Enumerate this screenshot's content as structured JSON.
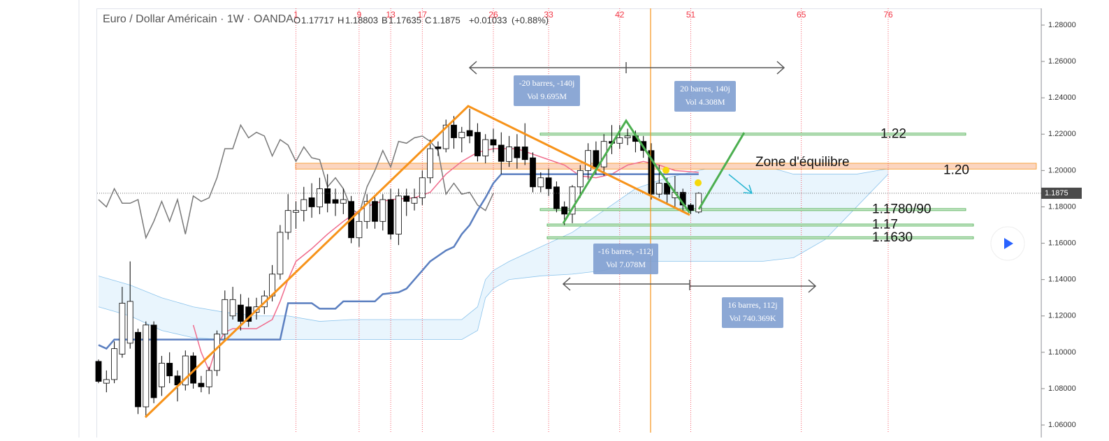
{
  "chart_data": {
    "type": "candlestick",
    "title": "Euro / Dollar Américain · 1W · OANDA",
    "ohlc_labels": [
      "O",
      "H",
      "B",
      "C"
    ],
    "change": "+0.01033",
    "change_pct": "(+0.88%)",
    "open": [
      1.095,
      1.083,
      1.085,
      1.099,
      1.105,
      1.111,
      1.07,
      1.115,
      1.081,
      1.094,
      1.087,
      1.082,
      1.098,
      1.083,
      1.081,
      1.09,
      1.11,
      1.12,
      1.126,
      1.125,
      1.122,
      1.125,
      1.131,
      1.143,
      1.166,
      1.177,
      1.178,
      1.185,
      1.18,
      1.19,
      1.184,
      1.182,
      1.183,
      1.163,
      1.172,
      1.183,
      1.172,
      1.184,
      1.165,
      1.186,
      1.182,
      1.185,
      1.196,
      1.213,
      1.212,
      1.225,
      1.218,
      1.222,
      1.221,
      1.208,
      1.217,
      1.214,
      1.205,
      1.213,
      1.213,
      1.207,
      1.191,
      1.196,
      1.191,
      1.18,
      1.176,
      1.191,
      1.2,
      1.211,
      1.202,
      1.216,
      1.215,
      1.218,
      1.219,
      1.216,
      1.211,
      1.187,
      1.193,
      1.185,
      1.188,
      1.181,
      1.17717
    ],
    "high": [
      1.096,
      1.09,
      1.106,
      1.136,
      1.15,
      1.113,
      1.117,
      1.117,
      1.098,
      1.1,
      1.09,
      1.101,
      1.1,
      1.087,
      1.092,
      1.112,
      1.134,
      1.136,
      1.132,
      1.13,
      1.13,
      1.134,
      1.148,
      1.17,
      1.187,
      1.183,
      1.191,
      1.193,
      1.196,
      1.198,
      1.19,
      1.19,
      1.186,
      1.176,
      1.187,
      1.186,
      1.187,
      1.19,
      1.19,
      1.19,
      1.19,
      1.2,
      1.217,
      1.216,
      1.228,
      1.23,
      1.224,
      1.234,
      1.226,
      1.22,
      1.223,
      1.221,
      1.219,
      1.22,
      1.226,
      1.21,
      1.199,
      1.201,
      1.194,
      1.183,
      1.192,
      1.203,
      1.215,
      1.216,
      1.22,
      1.225,
      1.225,
      1.223,
      1.222,
      1.219,
      1.215,
      1.203,
      1.196,
      1.197,
      1.19,
      1.182,
      1.18803
    ],
    "low": [
      1.083,
      1.078,
      1.083,
      1.097,
      1.102,
      1.066,
      1.064,
      1.072,
      1.076,
      1.083,
      1.073,
      1.079,
      1.08,
      1.078,
      1.077,
      1.087,
      1.107,
      1.118,
      1.112,
      1.114,
      1.118,
      1.121,
      1.128,
      1.14,
      1.162,
      1.168,
      1.172,
      1.174,
      1.176,
      1.177,
      1.175,
      1.176,
      1.16,
      1.158,
      1.168,
      1.168,
      1.167,
      1.162,
      1.159,
      1.175,
      1.178,
      1.181,
      1.193,
      1.208,
      1.21,
      1.212,
      1.21,
      1.215,
      1.205,
      1.204,
      1.21,
      1.198,
      1.202,
      1.201,
      1.203,
      1.188,
      1.188,
      1.186,
      1.177,
      1.17,
      1.171,
      1.185,
      1.195,
      1.198,
      1.197,
      1.209,
      1.212,
      1.214,
      1.21,
      1.207,
      1.184,
      1.185,
      1.182,
      1.18,
      1.178,
      1.176,
      1.17635
    ],
    "close": [
      1.084,
      1.085,
      1.102,
      1.127,
      1.128,
      1.07,
      1.115,
      1.075,
      1.094,
      1.087,
      1.082,
      1.098,
      1.083,
      1.081,
      1.09,
      1.11,
      1.129,
      1.129,
      1.117,
      1.117,
      1.125,
      1.131,
      1.143,
      1.166,
      1.178,
      1.178,
      1.184,
      1.18,
      1.19,
      1.182,
      1.182,
      1.184,
      1.163,
      1.172,
      1.183,
      1.172,
      1.184,
      1.165,
      1.186,
      1.183,
      1.185,
      1.196,
      1.212,
      1.212,
      1.225,
      1.218,
      1.221,
      1.219,
      1.208,
      1.217,
      1.214,
      1.205,
      1.213,
      1.207,
      1.206,
      1.191,
      1.196,
      1.19,
      1.179,
      1.176,
      1.191,
      1.2,
      1.211,
      1.202,
      1.216,
      1.215,
      1.218,
      1.219,
      1.216,
      1.211,
      1.187,
      1.193,
      1.187,
      1.188,
      1.181,
      1.178,
      1.1875
    ],
    "ylim": [
      1.0558,
      1.2892
    ],
    "yticks": [
      {
        "value": 1.28,
        "label": "1.28000"
      },
      {
        "value": 1.26,
        "label": "1.26000"
      },
      {
        "value": 1.24,
        "label": "1.24000"
      },
      {
        "value": 1.22,
        "label": "1.22000"
      },
      {
        "value": 1.2,
        "label": "1.20000"
      },
      {
        "value": 1.18,
        "label": "1.18000"
      },
      {
        "value": 1.16,
        "label": "1.16000"
      },
      {
        "value": 1.14,
        "label": "1.14000"
      },
      {
        "value": 1.12,
        "label": "1.12000"
      },
      {
        "value": 1.1,
        "label": "1.10000"
      },
      {
        "value": 1.08,
        "label": "1.08000"
      },
      {
        "value": 1.06,
        "label": "1.06000"
      }
    ],
    "time_zones": [
      1,
      9,
      13,
      17,
      26,
      33,
      42,
      51,
      65,
      76
    ],
    "zone": {
      "label": "Zone d'équilibre",
      "low": 1.2008,
      "high": 1.204
    },
    "levels": [
      {
        "value": 1.22,
        "label": "1.22"
      },
      {
        "value": 1.2,
        "label": "1.20"
      },
      {
        "value": 1.1785,
        "label": "1.1780/90"
      },
      {
        "value": 1.17,
        "label": "1.17"
      },
      {
        "value": 1.163,
        "label": "1.1630"
      }
    ],
    "overlays": [
      {
        "color": "#787878",
        "x": [
          0,
          1,
          2,
          3,
          4,
          5,
          6,
          7,
          8,
          9,
          10,
          11,
          12,
          13,
          14,
          15,
          16,
          17,
          18,
          19,
          20,
          21,
          22,
          23,
          24,
          25,
          26,
          27,
          28,
          29,
          30,
          31,
          32,
          33,
          34,
          35,
          36,
          37,
          38,
          39,
          40,
          41,
          42,
          43,
          44,
          45,
          46,
          47,
          48,
          49,
          50
        ],
        "values": [
          1.184,
          1.18,
          1.19,
          1.182,
          1.182,
          1.184,
          1.163,
          1.172,
          1.183,
          1.172,
          1.184,
          1.165,
          1.186,
          1.183,
          1.185,
          1.196,
          1.212,
          1.212,
          1.225,
          1.218,
          1.221,
          1.219,
          1.208,
          1.217,
          1.214,
          1.205,
          1.213,
          1.207,
          1.206,
          1.191,
          1.196,
          1.19,
          1.179,
          1.176,
          1.191,
          1.2,
          1.211,
          1.202,
          1.216,
          1.215,
          1.218,
          1.219,
          1.216,
          1.211,
          1.187,
          1.193,
          1.187,
          1.188,
          1.181,
          1.178,
          1.1875
        ]
      },
      {
        "color": "#f06b8c",
        "x": [
          12,
          13,
          14,
          15,
          16,
          17,
          20,
          22,
          23,
          24,
          25,
          27,
          29,
          31,
          33,
          35,
          37,
          40,
          42,
          44,
          46,
          48,
          50,
          53,
          55,
          57,
          59,
          61,
          63,
          65,
          67,
          69,
          71,
          73,
          76
        ],
        "values": [
          1.115,
          1.1,
          1.09,
          1.104,
          1.111,
          1.113,
          1.113,
          1.118,
          1.128,
          1.14,
          1.15,
          1.157,
          1.165,
          1.172,
          1.178,
          1.182,
          1.184,
          1.185,
          1.188,
          1.198,
          1.205,
          1.21,
          1.212,
          1.212,
          1.209,
          1.206,
          1.203,
          1.197,
          1.196,
          1.198,
          1.203,
          1.205,
          1.203,
          1.2,
          1.199
        ]
      },
      {
        "color": "#5b7fc0",
        "x": [
          0,
          1,
          2,
          23,
          24,
          27,
          28,
          30,
          31,
          35,
          36,
          38,
          39,
          40,
          41,
          42,
          44,
          45,
          46,
          47,
          48,
          49,
          50,
          51,
          76
        ],
        "values": [
          1.104,
          1.102,
          1.107,
          1.107,
          1.127,
          1.127,
          1.124,
          1.124,
          1.128,
          1.128,
          1.132,
          1.133,
          1.135,
          1.14,
          1.145,
          1.15,
          1.156,
          1.158,
          1.165,
          1.17,
          1.178,
          1.185,
          1.193,
          1.198,
          1.198
        ]
      }
    ],
    "cloud": {
      "x": [
        0,
        4,
        8,
        12,
        16,
        20,
        24,
        28,
        32,
        36,
        40,
        46,
        48,
        49,
        50,
        52,
        56,
        60,
        64,
        68,
        72,
        76,
        80,
        84,
        88,
        92,
        96,
        100
      ],
      "span_a": [
        1.142,
        1.137,
        1.13,
        1.125,
        1.122,
        1.12,
        1.12,
        1.117,
        1.118,
        1.118,
        1.118,
        1.118,
        1.125,
        1.14,
        1.145,
        1.15,
        1.158,
        1.166,
        1.178,
        1.19,
        1.196,
        1.2,
        1.204,
        1.203,
        1.198,
        1.198,
        1.198,
        1.201
      ],
      "span_b": [
        1.125,
        1.12,
        1.112,
        1.108,
        1.107,
        1.107,
        1.107,
        1.107,
        1.107,
        1.107,
        1.107,
        1.107,
        1.112,
        1.13,
        1.135,
        1.14,
        1.142,
        1.143,
        1.145,
        1.15,
        1.15,
        1.15,
        1.15,
        1.15,
        1.152,
        1.162,
        1.18,
        1.198
      ]
    },
    "ranges": [
      {
        "bars": "-20 barres, -140j",
        "volume": "Vol 9.695M"
      },
      {
        "bars": "20 barres, 140j",
        "volume": "Vol 4.308M"
      },
      {
        "bars": "-16 barres, -112j",
        "volume": "Vol 7.078M"
      },
      {
        "bars": "16 barres, 112j",
        "volume": "Vol 740.369K"
      }
    ]
  }
}
